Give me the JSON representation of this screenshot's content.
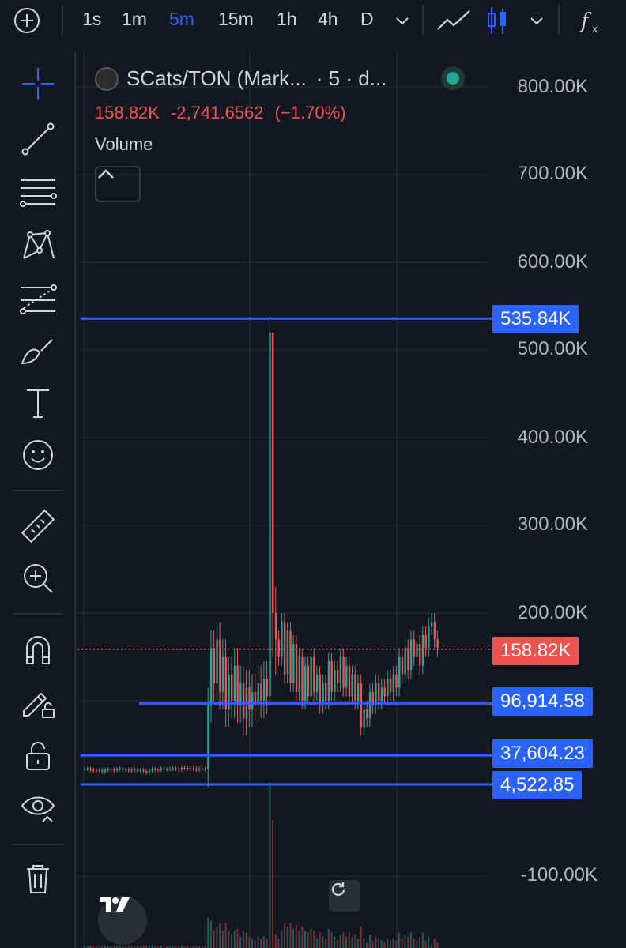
{
  "toolbar": {
    "timeframes": [
      "1s",
      "1m",
      "5m",
      "15m",
      "1h",
      "4h",
      "D"
    ],
    "active_timeframe": "5m"
  },
  "legend": {
    "symbol": "SCats/TON (Mark...",
    "interval": "· 5 · d...",
    "last_price": "158.82K",
    "change": "-2,741.6562",
    "change_pct": "(−1.70%)",
    "volume_label": "Volume"
  },
  "price_axis": {
    "ticks": [
      "800.00K",
      "700.00K",
      "600.00K",
      "500.00K",
      "400.00K",
      "300.00K",
      "200.00K",
      "-100.00K"
    ]
  },
  "horizontal_lines": [
    {
      "label": "535.84K",
      "color": "#2962ff"
    },
    {
      "label": "96,914.58",
      "color": "#2962ff"
    },
    {
      "label": "37,604.23",
      "color": "#2962ff"
    },
    {
      "label": "4,522.85",
      "color": "#2962ff"
    }
  ],
  "current_price_tag": {
    "label": "158.82K",
    "color": "#ef5350"
  },
  "colors": {
    "background": "#131722",
    "up": "#26a69a",
    "down": "#ef5350",
    "accent": "#2962ff"
  },
  "sidebar_tools": [
    "crosshair-icon",
    "trend-line-icon",
    "horizontal-lines-icon",
    "pattern-icon",
    "fib-icon",
    "brush-icon",
    "text-icon",
    "emoji-icon",
    "ruler-icon",
    "zoom-icon",
    "magnet-icon",
    "lock-drawing-icon",
    "lock-icon",
    "eye-icon",
    "trash-icon"
  ],
  "chart_data": {
    "type": "candlestick",
    "y_ticks": [
      "800.00K",
      "700.00K",
      "600.00K",
      "500.00K",
      "400.00K",
      "300.00K",
      "200.00K",
      "-100.00K"
    ],
    "ylim": [
      -100000,
      800000
    ],
    "last": 158820,
    "high": 535840,
    "levels": [
      535840,
      96914.58,
      37604.23,
      4522.85
    ]
  }
}
